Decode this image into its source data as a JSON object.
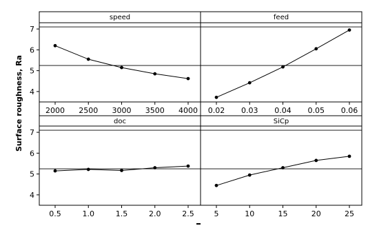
{
  "ylabel": "Surface roughness, Ra",
  "xlabel": "",
  "ylim": [
    3.5,
    7.3
  ],
  "yticks": [
    4,
    5,
    6,
    7
  ],
  "reference_levels": [
    7.1,
    5.25
  ],
  "colors": {
    "line": "#000000",
    "frame": "#000000",
    "background": "#ffffff"
  },
  "chart_data": [
    {
      "type": "line",
      "title": "speed",
      "x": [
        2000,
        2500,
        3000,
        3500,
        4000
      ],
      "x_labels": [
        "2000",
        "2500",
        "3000",
        "3500",
        "4000"
      ],
      "y": [
        6.2,
        5.55,
        5.15,
        4.85,
        4.62
      ]
    },
    {
      "type": "line",
      "title": "feed",
      "x": [
        0.02,
        0.03,
        0.04,
        0.05,
        0.06
      ],
      "x_labels": [
        "0.02",
        "0.03",
        "0.04",
        "0.05",
        "0.06"
      ],
      "y": [
        3.72,
        4.42,
        5.18,
        6.05,
        6.95
      ]
    },
    {
      "type": "line",
      "title": "doc",
      "x": [
        0.5,
        1.0,
        1.5,
        2.0,
        2.5
      ],
      "x_labels": [
        "0.5",
        "1.0",
        "1.5",
        "2.0",
        "2.5"
      ],
      "y": [
        5.15,
        5.22,
        5.17,
        5.3,
        5.38
      ]
    },
    {
      "type": "line",
      "title": "SiCp",
      "x": [
        5,
        10,
        15,
        20,
        25
      ],
      "x_labels": [
        "5",
        "10",
        "15",
        "20",
        "25"
      ],
      "y": [
        4.45,
        4.95,
        5.3,
        5.65,
        5.85
      ]
    }
  ]
}
